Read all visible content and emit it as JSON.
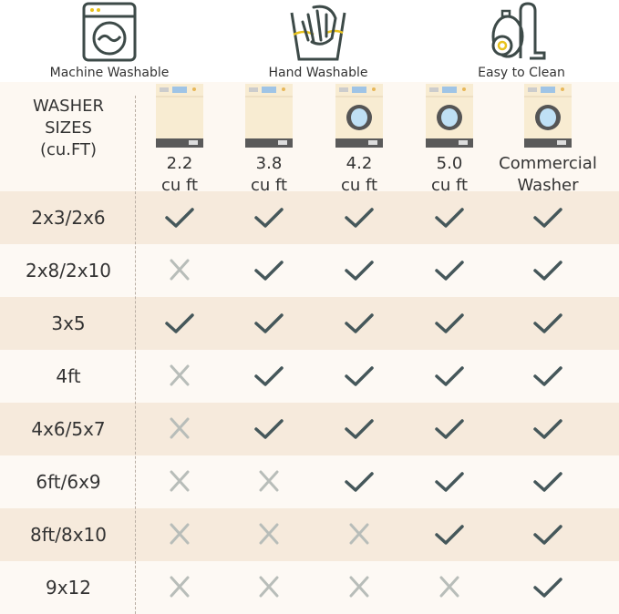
{
  "features": [
    {
      "label": "Machine Washable",
      "icon": "washing-machine-icon"
    },
    {
      "label": "Hand Washable",
      "icon": "hand-wash-icon"
    },
    {
      "label": "Easy to Clean",
      "icon": "vacuum-cleaner-icon"
    }
  ],
  "table": {
    "header_label": [
      "WASHER",
      "SIZES",
      "(cu.FT)"
    ],
    "columns": [
      {
        "line1": "2.2",
        "line2": "cu ft",
        "type": "top-load"
      },
      {
        "line1": "3.8",
        "line2": "cu ft",
        "type": "top-load"
      },
      {
        "line1": "4.2",
        "line2": "cu ft",
        "type": "front-load"
      },
      {
        "line1": "5.0",
        "line2": "cu ft",
        "type": "front-load"
      },
      {
        "line1": "Commercial",
        "line2": "Washer",
        "type": "front-load"
      }
    ],
    "rows": [
      {
        "label": "2x3/2x6",
        "fits": [
          true,
          true,
          true,
          true,
          true
        ]
      },
      {
        "label": "2x8/2x10",
        "fits": [
          false,
          true,
          true,
          true,
          true
        ]
      },
      {
        "label": "3x5",
        "fits": [
          true,
          true,
          true,
          true,
          true
        ]
      },
      {
        "label": "4ft",
        "fits": [
          false,
          true,
          true,
          true,
          true
        ]
      },
      {
        "label": "4x6/5x7",
        "fits": [
          false,
          true,
          true,
          true,
          true
        ]
      },
      {
        "label": "6ft/6x9",
        "fits": [
          false,
          false,
          true,
          true,
          true
        ]
      },
      {
        "label": "8ft/8x10",
        "fits": [
          false,
          false,
          false,
          true,
          true
        ]
      },
      {
        "label": "9x12",
        "fits": [
          false,
          false,
          false,
          false,
          true
        ]
      }
    ]
  },
  "colors": {
    "row_dark": "#f6eadc",
    "row_light": "#fdf9f4",
    "check": "#45575a",
    "cross": "#b8bdb9",
    "icon_stroke": "#3d4a48",
    "accent": "#e8c21e"
  }
}
